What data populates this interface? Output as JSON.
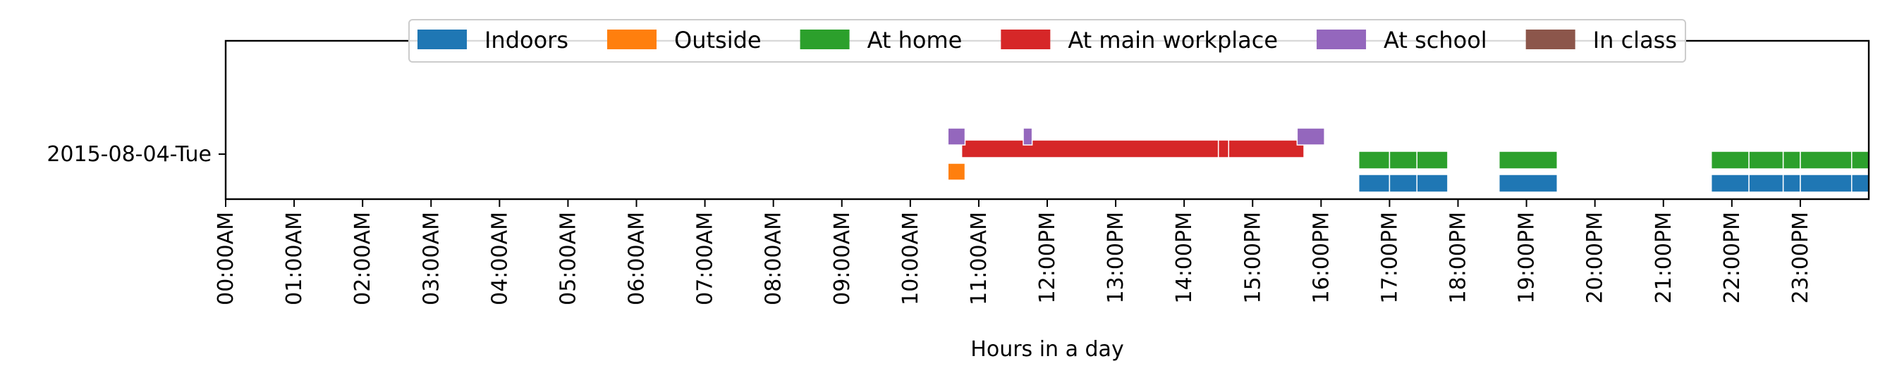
{
  "chart_data": {
    "type": "timeline",
    "xlabel": "Hours in a day",
    "xlim": [
      0,
      24
    ],
    "x_tick_labels": [
      "00:00AM",
      "01:00AM",
      "02:00AM",
      "03:00AM",
      "04:00AM",
      "05:00AM",
      "06:00AM",
      "07:00AM",
      "08:00AM",
      "09:00AM",
      "10:00AM",
      "11:00AM",
      "12:00PM",
      "13:00PM",
      "14:00PM",
      "15:00PM",
      "16:00PM",
      "17:00PM",
      "18:00PM",
      "19:00PM",
      "20:00PM",
      "21:00PM",
      "22:00PM",
      "23:00PM"
    ],
    "y_tick_labels": [
      "2015-08-04-Tue"
    ],
    "legend_position": "top-center",
    "grid": false,
    "series": [
      {
        "name": "Indoors",
        "color": "#1f77b4",
        "intervals": [
          [
            16.55,
            17.0
          ],
          [
            17.0,
            17.4
          ],
          [
            17.4,
            17.85
          ],
          [
            18.6,
            19.45
          ],
          [
            21.7,
            22.25
          ],
          [
            22.25,
            22.75
          ],
          [
            22.75,
            23.0
          ],
          [
            23.0,
            23.75
          ],
          [
            23.75,
            24.0
          ]
        ]
      },
      {
        "name": "Outside",
        "color": "#ff7f0e",
        "intervals": [
          [
            10.55,
            10.8
          ]
        ]
      },
      {
        "name": "At home",
        "color": "#2ca02c",
        "intervals": [
          [
            16.55,
            17.0
          ],
          [
            17.0,
            17.4
          ],
          [
            17.4,
            17.85
          ],
          [
            18.6,
            19.45
          ],
          [
            21.7,
            22.25
          ],
          [
            22.25,
            22.75
          ],
          [
            22.75,
            23.0
          ],
          [
            23.0,
            23.75
          ],
          [
            23.75,
            24.0
          ]
        ]
      },
      {
        "name": "At main workplace",
        "color": "#d62728",
        "intervals": [
          [
            10.75,
            14.5
          ],
          [
            14.5,
            14.65
          ],
          [
            14.65,
            15.75
          ]
        ]
      },
      {
        "name": "At school",
        "color": "#9467bd",
        "intervals": [
          [
            10.55,
            10.8
          ],
          [
            11.65,
            11.78
          ],
          [
            15.65,
            16.05
          ]
        ]
      },
      {
        "name": "In class",
        "color": "#8c564b",
        "intervals": []
      }
    ]
  }
}
